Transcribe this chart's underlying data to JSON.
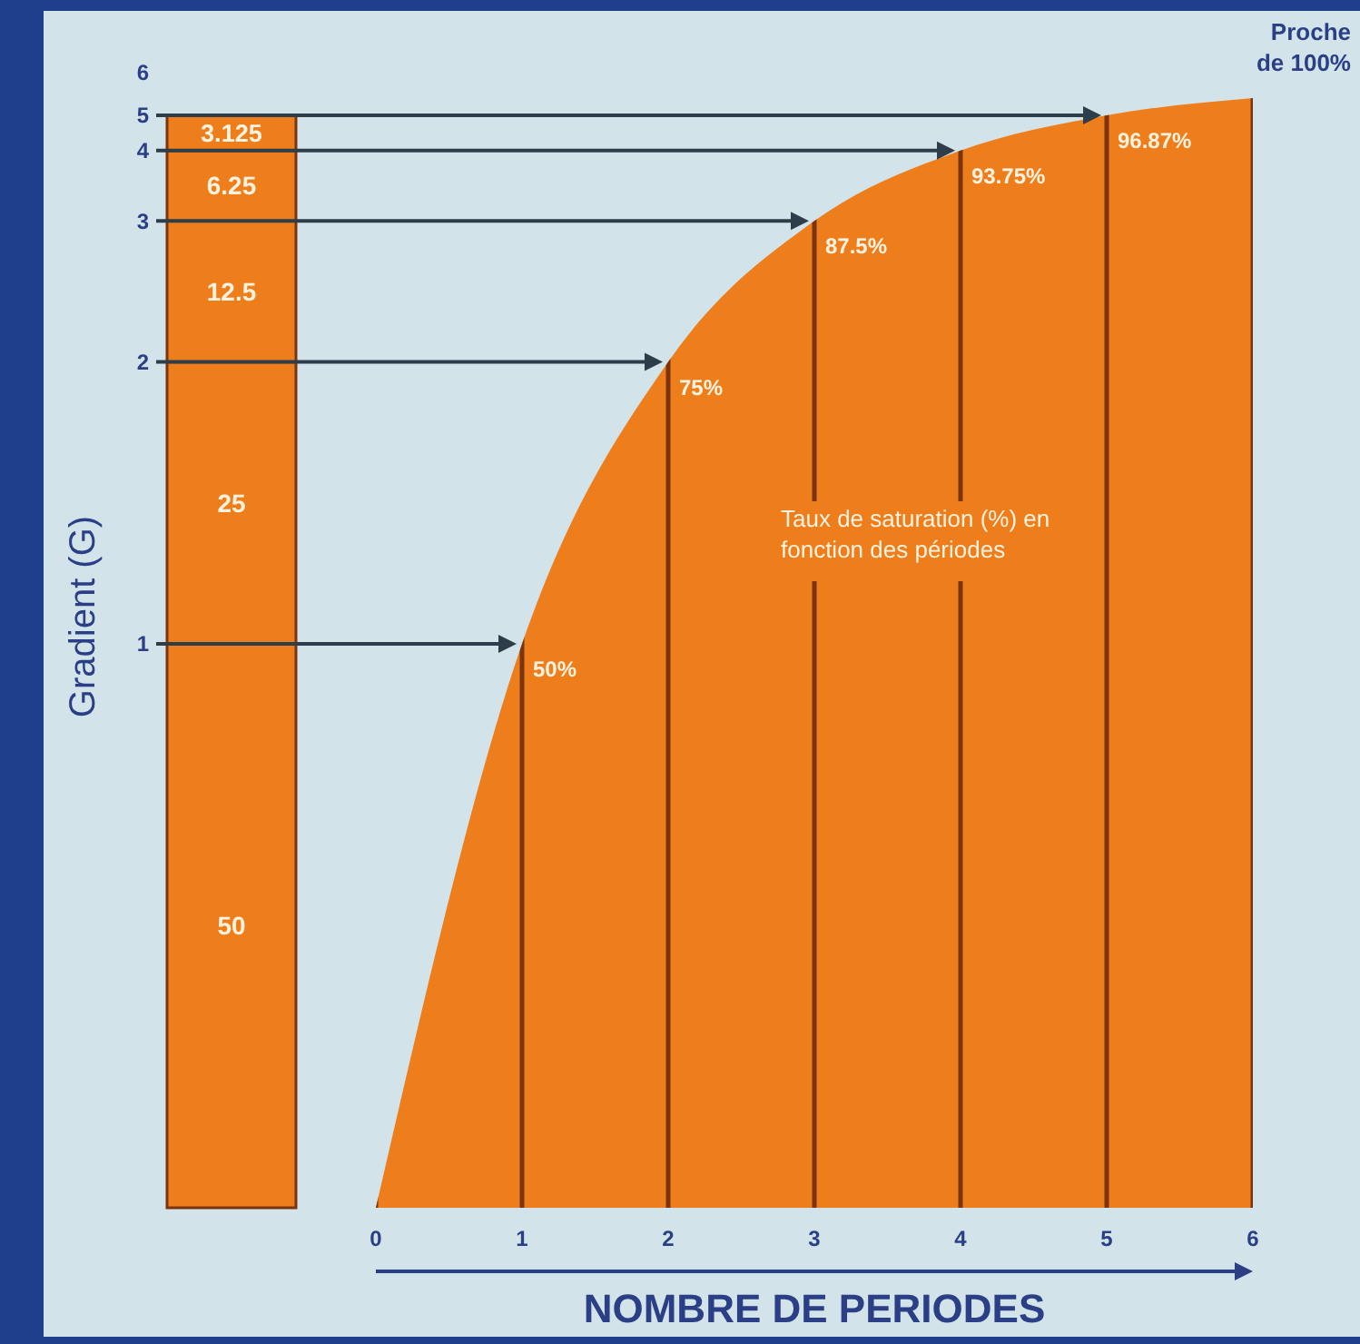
{
  "chart_data": [
    {
      "type": "bar",
      "stacked": true,
      "categories": [
        null
      ],
      "ylabel": "Gradient  (G)",
      "data_labels": true,
      "tick_labels": false,
      "annotations": [
        "1",
        "2",
        "3",
        "4",
        "5",
        "6"
      ],
      "series": [
        {
          "color": "#ee7d1b",
          "values": [
            50
          ]
        },
        {
          "color": "#ee7d1b",
          "values": [
            25
          ]
        },
        {
          "color": "#ee7d1b",
          "values": [
            12.5
          ]
        },
        {
          "color": "#ee7d1b",
          "values": [
            6.25
          ]
        },
        {
          "color": "#ee7d1b",
          "values": [
            3.125
          ]
        }
      ]
    },
    {
      "type": "area",
      "x": [
        0,
        1,
        2,
        3,
        4,
        5,
        6
      ],
      "xlim": [
        0,
        6
      ],
      "xticks": [
        0,
        1,
        2,
        3,
        4,
        5,
        6
      ],
      "xlabel": "NOMBRE DE PERIODES",
      "grid": "x",
      "tick_labels": "x",
      "series": [
        {
          "color": "#ee7d1b",
          "values": [
            0,
            50,
            75,
            87.5,
            93.75,
            96.875,
            98.4
          ],
          "value_labels": [
            null,
            "50%",
            "75%",
            "87.5%",
            "93.75%",
            "96.87%",
            null
          ]
        }
      ],
      "ref_lines": [
        {
          "axis": "y",
          "value": 50,
          "color": "#2d3e4a"
        },
        {
          "axis": "y",
          "value": 75,
          "color": "#2d3e4a"
        },
        {
          "axis": "y",
          "value": 87.5,
          "color": "#2d3e4a"
        },
        {
          "axis": "y",
          "value": 93.75,
          "color": "#2d3e4a"
        },
        {
          "axis": "y",
          "value": 96.875,
          "color": "#2d3e4a"
        }
      ],
      "annotations": [
        "Taux de saturation (%) en fonction des périodes",
        "Proche de 100%"
      ]
    }
  ]
}
